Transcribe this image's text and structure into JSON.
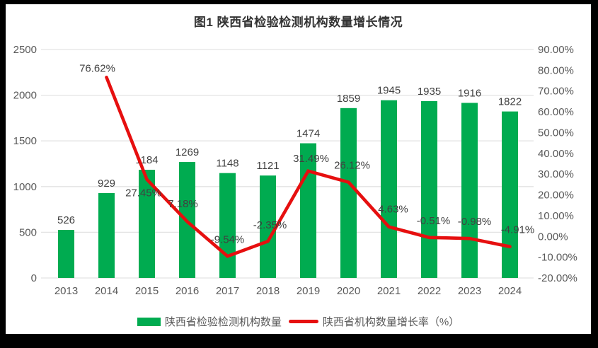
{
  "chart_data": {
    "type": "combo-bar-line",
    "title": "图1 陕西省检验检测机构数量增长情况",
    "categories": [
      "2013",
      "2014",
      "2015",
      "2016",
      "2017",
      "2018",
      "2019",
      "2020",
      "2021",
      "2022",
      "2023",
      "2024"
    ],
    "series": [
      {
        "name": "陕西省检验检测机构数量",
        "type": "bar",
        "axis": "left",
        "color": "#00AB50",
        "values": [
          526,
          929,
          1184,
          1269,
          1148,
          1121,
          1474,
          1859,
          1945,
          1935,
          1916,
          1822
        ],
        "labels": [
          "526",
          "929",
          "1184",
          "1269",
          "1148",
          "1121",
          "1474",
          "1859",
          "1945",
          "1935",
          "1916",
          "1822"
        ]
      },
      {
        "name": "陕西省机构数量增长率（%）",
        "type": "line",
        "axis": "right",
        "color": "#E60F0F",
        "values": [
          null,
          76.62,
          27.45,
          7.18,
          -9.54,
          -2.35,
          31.49,
          26.12,
          4.63,
          -0.51,
          -0.98,
          -4.91
        ],
        "labels": [
          null,
          "76.62%",
          "27.45%",
          "7.18%",
          "-9.54%",
          "-2.35%",
          "31.49%",
          "26.12%",
          "4.63%",
          "-0.51%",
          "-0.98%",
          "-4.91%"
        ]
      }
    ],
    "left_axis": {
      "min": 0,
      "max": 2500,
      "step": 500,
      "ticks_top_to_bottom": [
        "2500",
        "2000",
        "1500",
        "1000",
        "500",
        "0"
      ]
    },
    "right_axis": {
      "min": -20,
      "max": 90,
      "step": 10,
      "ticks_top_to_bottom": [
        "90.00%",
        "80.00%",
        "70.00%",
        "60.00%",
        "50.00%",
        "40.00%",
        "30.00%",
        "20.00%",
        "10.00%",
        "0.00%",
        "-10.00%",
        "-20.00%"
      ]
    },
    "grid": true,
    "gridline_color": "#E3E3E3",
    "axis_text_color": "#595959",
    "data_label_color": "#404040",
    "legend_position": "bottom"
  }
}
